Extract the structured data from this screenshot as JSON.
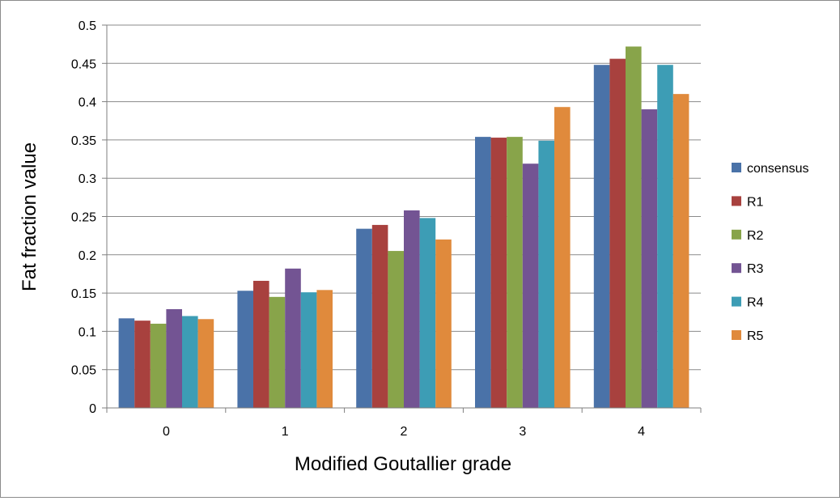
{
  "chart_data": {
    "type": "bar",
    "title": "",
    "xlabel": "Modified Goutallier grade",
    "ylabel": "Fat fraction value",
    "categories": [
      "0",
      "1",
      "2",
      "3",
      "4"
    ],
    "ylim": [
      0,
      0.5
    ],
    "yticks": [
      "0",
      "0.05",
      "0.1",
      "0.15",
      "0.2",
      "0.25",
      "0.3",
      "0.35",
      "0.4",
      "0.45",
      "0.5"
    ],
    "grid": true,
    "legend_position": "right",
    "series": [
      {
        "name": "consensus",
        "color": "#4a72a8",
        "values": [
          0.117,
          0.153,
          0.234,
          0.354,
          0.448
        ]
      },
      {
        "name": "R1",
        "color": "#a8413e",
        "values": [
          0.114,
          0.166,
          0.239,
          0.353,
          0.456
        ]
      },
      {
        "name": "R2",
        "color": "#88a44a",
        "values": [
          0.11,
          0.145,
          0.205,
          0.354,
          0.472
        ]
      },
      {
        "name": "R3",
        "color": "#735493",
        "values": [
          0.129,
          0.182,
          0.258,
          0.319,
          0.39
        ]
      },
      {
        "name": "R4",
        "color": "#3d9db5",
        "values": [
          0.12,
          0.151,
          0.248,
          0.349,
          0.448
        ]
      },
      {
        "name": "R5",
        "color": "#e08a3c",
        "values": [
          0.116,
          0.154,
          0.22,
          0.393,
          0.41
        ]
      }
    ]
  }
}
